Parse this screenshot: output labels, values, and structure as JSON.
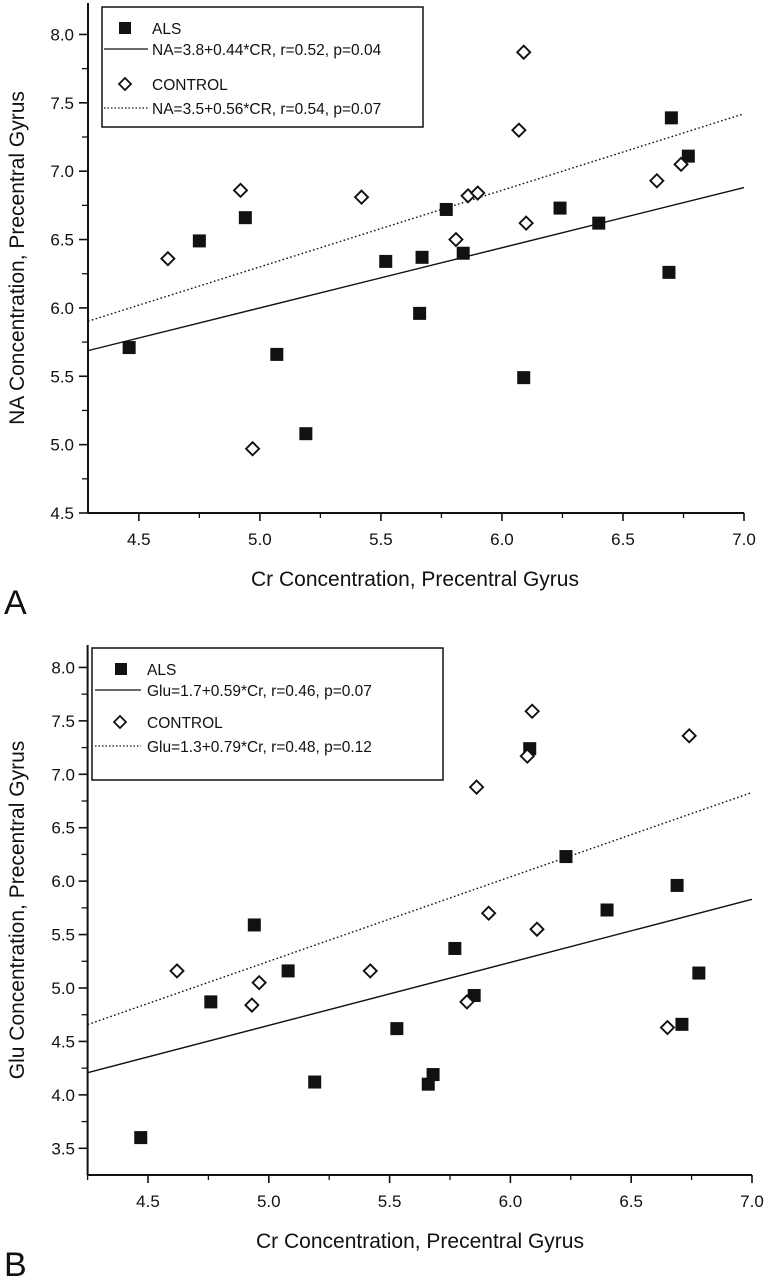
{
  "chart_data": [
    {
      "panel": "A",
      "type": "scatter",
      "xlabel": "Cr Concentration, Precentral Gyrus",
      "ylabel": "NA Concentration, Precentral Gyrus",
      "xlim": [
        4.29,
        7.0
      ],
      "ylim": [
        4.5,
        8.23
      ],
      "xticks": [
        "4.5",
        "5.0",
        "5.5",
        "6.0",
        "6.5",
        "7.0"
      ],
      "yticks": [
        "4.5",
        "5.0",
        "5.5",
        "6.0",
        "6.5",
        "7.0",
        "7.5",
        "8.0"
      ],
      "grid": false,
      "legend_position": "top-left",
      "series": [
        {
          "name": "ALS",
          "marker": "filled-square",
          "fit_label": "NA=3.8+0.44*CR, r=0.52, p=0.04",
          "fit": {
            "intercept": 3.8,
            "slope": 0.44,
            "style": "solid"
          },
          "points": [
            [
              4.46,
              5.71
            ],
            [
              4.75,
              6.49
            ],
            [
              4.94,
              6.66
            ],
            [
              5.07,
              5.66
            ],
            [
              5.19,
              5.08
            ],
            [
              5.52,
              6.34
            ],
            [
              5.66,
              5.96
            ],
            [
              5.67,
              6.37
            ],
            [
              5.77,
              6.72
            ],
            [
              5.84,
              6.4
            ],
            [
              6.09,
              5.49
            ],
            [
              6.24,
              6.73
            ],
            [
              6.4,
              6.62
            ],
            [
              6.69,
              6.26
            ],
            [
              6.7,
              7.39
            ],
            [
              6.77,
              7.11
            ]
          ]
        },
        {
          "name": "CONTROL",
          "marker": "open-diamond",
          "fit_label": "NA=3.5+0.56*CR, r=0.54, p=0.07",
          "fit": {
            "intercept": 3.5,
            "slope": 0.56,
            "style": "dotted"
          },
          "points": [
            [
              4.62,
              6.36
            ],
            [
              4.92,
              6.86
            ],
            [
              4.97,
              4.97
            ],
            [
              5.42,
              6.81
            ],
            [
              5.81,
              6.5
            ],
            [
              5.86,
              6.82
            ],
            [
              5.9,
              6.84
            ],
            [
              6.07,
              7.3
            ],
            [
              6.09,
              7.87
            ],
            [
              6.1,
              6.62
            ],
            [
              6.64,
              6.93
            ],
            [
              6.74,
              7.05
            ]
          ]
        }
      ]
    },
    {
      "panel": "B",
      "type": "scatter",
      "xlabel": "Cr Concentration, Precentral Gyrus",
      "ylabel": "Glu Concentration, Precentral Gyrus",
      "xlim": [
        4.25,
        7.0
      ],
      "ylim": [
        3.25,
        8.21
      ],
      "xticks": [
        "4.5",
        "5.0",
        "5.5",
        "6.0",
        "6.5",
        "7.0"
      ],
      "yticks": [
        "3.5",
        "4.0",
        "4.5",
        "5.0",
        "5.5",
        "6.0",
        "6.5",
        "7.0",
        "7.5",
        "8.0"
      ],
      "grid": false,
      "legend_position": "top-left",
      "series": [
        {
          "name": "ALS",
          "marker": "filled-square",
          "fit_label": "Glu=1.7+0.59*Cr, r=0.46, p=0.07",
          "fit": {
            "intercept": 1.7,
            "slope": 0.59,
            "style": "solid"
          },
          "points": [
            [
              4.47,
              3.6
            ],
            [
              4.76,
              4.87
            ],
            [
              4.94,
              5.59
            ],
            [
              5.08,
              5.16
            ],
            [
              5.19,
              4.12
            ],
            [
              5.53,
              4.62
            ],
            [
              5.66,
              4.1
            ],
            [
              5.68,
              4.19
            ],
            [
              5.77,
              5.37
            ],
            [
              5.85,
              4.93
            ],
            [
              6.08,
              7.24
            ],
            [
              6.23,
              6.23
            ],
            [
              6.4,
              5.73
            ],
            [
              6.69,
              5.96
            ],
            [
              6.71,
              4.66
            ],
            [
              6.78,
              5.14
            ]
          ]
        },
        {
          "name": "CONTROL",
          "marker": "open-diamond",
          "fit_label": "Glu=1.3+0.79*Cr, r=0.48, p=0.12",
          "fit": {
            "intercept": 1.3,
            "slope": 0.79,
            "style": "dotted"
          },
          "points": [
            [
              4.62,
              5.16
            ],
            [
              4.93,
              4.84
            ],
            [
              4.96,
              5.05
            ],
            [
              5.42,
              5.16
            ],
            [
              5.82,
              4.87
            ],
            [
              5.86,
              6.88
            ],
            [
              5.91,
              5.7
            ],
            [
              6.07,
              7.17
            ],
            [
              6.09,
              7.59
            ],
            [
              6.11,
              5.55
            ],
            [
              6.65,
              4.63
            ],
            [
              6.74,
              7.36
            ]
          ]
        }
      ]
    }
  ],
  "colors": {
    "ink": "#111111",
    "background": "#ffffff"
  }
}
